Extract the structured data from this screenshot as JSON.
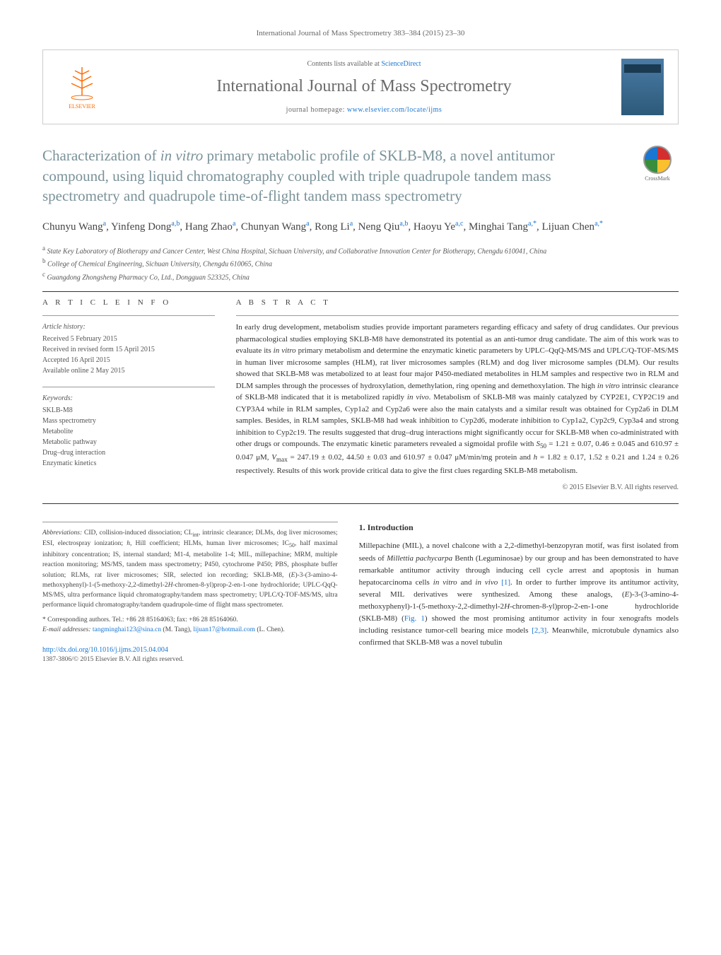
{
  "header": {
    "citation": "International Journal of Mass Spectrometry 383–384 (2015) 23–30",
    "contentsLine": "Contents lists available at ",
    "contentsLink": "ScienceDirect",
    "journalTitle": "International Journal of Mass Spectrometry",
    "homepagePrefix": "journal homepage: ",
    "homepageUrl": "www.elsevier.com/locate/ijms",
    "elsevierLabel": "ELSEVIER"
  },
  "article": {
    "titleHtml": "Characterization of <em>in vitro</em> primary metabolic profile of SKLB-M8, a novel antitumor compound, using liquid chromatography coupled with triple quadrupole tandem mass spectrometry and quadrupole time-of-flight tandem mass spectrometry",
    "crossmarkLabel": "CrossMark",
    "authorsHtml": "Chunyu Wang<sup>a</sup>, Yinfeng Dong<sup>a,b</sup>, Hang Zhao<sup>a</sup>, Chunyan Wang<sup>a</sup>, Rong Li<sup>a</sup>, Neng Qiu<sup>a,b</sup>, Haoyu Ye<sup>a,c</sup>, Minghai Tang<sup>a,*</sup>, Lijuan Chen<sup>a,*</sup>",
    "affiliations": [
      {
        "sup": "a",
        "text": "State Key Laboratory of Biotherapy and Cancer Center, West China Hospital, Sichuan University, and Collaborative Innovation Center for Biotherapy, Chengdu 610041, China"
      },
      {
        "sup": "b",
        "text": "College of Chemical Engineering, Sichuan University, Chengdu 610065, China"
      },
      {
        "sup": "c",
        "text": "Guangdong Zhongsheng Pharmacy Co, Ltd., Dongguan 523325, China"
      }
    ]
  },
  "info": {
    "articleInfoHeading": "a r t i c l e   i n f o",
    "historyLabel": "Article history:",
    "history": [
      "Received 5 February 2015",
      "Received in revised form 15 April 2015",
      "Accepted 16 April 2015",
      "Available online 2 May 2015"
    ],
    "keywordsLabel": "Keywords:",
    "keywords": [
      "SKLB-M8",
      "Mass spectrometry",
      "Metabolite",
      "Metabolic pathway",
      "Drug–drug interaction",
      "Enzymatic kinetics"
    ]
  },
  "abstract": {
    "heading": "a b s t r a c t",
    "textHtml": "In early drug development, metabolism studies provide important parameters regarding efficacy and safety of drug candidates. Our previous pharmacological studies employing SKLB-M8 have demonstrated its potential as an anti-tumor drug candidate. The aim of this work was to evaluate its <em>in vitro</em> primary metabolism and determine the enzymatic kinetic parameters by UPLC–QqQ-MS/MS and UPLC/Q-TOF-MS/MS in human liver microsome samples (HLM), rat liver microsomes samples (RLM) and dog liver microsome samples (DLM). Our results showed that SKLB-M8 was metabolized to at least four major P450-mediated metabolites in HLM samples and respective two in RLM and DLM samples through the processes of hydroxylation, demethylation, ring opening and demethoxylation. The high <em>in vitro</em> intrinsic clearance of SKLB-M8 indicated that it is metabolized rapidly <em>in vivo</em>. Metabolism of SKLB-M8 was mainly catalyzed by CYP2E1, CYP2C19 and CYP3A4 while in RLM samples, Cyp1a2 and Cyp2a6 were also the main catalysts and a similar result was obtained for Cyp2a6 in DLM samples. Besides, in RLM samples, SKLB-M8 had weak inhibition to Cyp2d6, moderate inhibition to Cyp1a2, Cyp2c9, Cyp3a4 and strong inhibition to Cyp2c19. The results suggested that drug–drug interactions might significantly occur for SKLB-M8 when co-administrated with other drugs or compounds. The enzymatic kinetic parameters revealed a sigmoidal profile with <em>S</em><sub>50</sub> = 1.21 ± 0.07, 0.46 ± 0.045 and 610.97 ± 0.047 μM, <em>V</em><sub>max</sub> = 247.19 ± 0.02, 44.50 ± 0.03 and 610.97 ± 0.047 μM/min/mg protein and <em>h</em> = 1.82 ± 0.17, 1.52 ± 0.21 and 1.24 ± 0.26 respectively. Results of this work provide critical data to give the first clues regarding SKLB-M8 metabolism.",
    "copyright": "© 2015 Elsevier B.V. All rights reserved."
  },
  "footnotes": {
    "abbrevLabel": "Abbreviations:",
    "abbrevHtml": "CID, collision-induced dissociation; CL<sub>int</sub>, intrinsic clearance; DLMs, dog liver microsomes; ESI, electrospray ionization; <em>h</em>, Hill coefficient; HLMs, human liver microsomes; IC<sub>50</sub>, half maximal inhibitory concentration; IS, internal standard; M1-4, metabolite 1-4; MIL, millepachine; MRM, multiple reaction monitoring; MS/MS, tandem mass spectrometry; P450, cytochrome P450; PBS, phosphate buffer solution; RLMs, rat liver microsomes; SIR, selected ion recording; SKLB-M8, (<em>E</em>)-3-(3-amino-4-methoxyphenyl)-1-(5-methoxy-2,2-dimethyl-2<em>H</em>-chromen-8-yl)prop-2-en-1-one hydrochloride; UPLC-QqQ-MS/MS, ultra performance liquid chromatography/tandem mass spectrometry; UPLC/Q-TOF-MS/MS, ultra performance liquid chromatography/tandem quadrupole-time of flight mass spectrometer.",
    "corrLabel": "* Corresponding authors. Tel.: +86 28 85164063; fax: +86 28 85164060.",
    "emailLabel": "E-mail addresses:",
    "email1": "tangminghai123@sina.cn",
    "email1name": " (M. Tang), ",
    "email2": "lijuan17@hotmail.com",
    "email2name": " (L. Chen).",
    "doi": "http://dx.doi.org/10.1016/j.ijms.2015.04.004",
    "issn": "1387-3806/© 2015 Elsevier B.V. All rights reserved."
  },
  "intro": {
    "heading": "1. Introduction",
    "textHtml": "Millepachine (MIL), a novel chalcone with a 2,2-dimethyl-benzopyran motif, was first isolated from seeds of <em>Millettia pachycarpa</em> Benth (Leguminosae) by our group and has been demonstrated to have remarkable antitumor activity through inducing cell cycle arrest and apoptosis in human hepatocarcinoma cells <em>in vitro</em> and <em>in vivo</em> <a>[1]</a>. In order to further improve its antitumor activity, several MIL derivatives were synthesized. Among these analogs, (<em>E</em>)-3-(3-amino-4-methoxyphenyl)-1-(5-methoxy-2,2-dimethyl-2<em>H</em>-chromen-8-yl)prop-2-en-1-one hydrochloride (SKLB-M8) (<a>Fig. 1</a>) showed the most promising antitumor activity in four xenografts models including resistance tumor-cell bearing mice models <a>[2,3]</a>. Meanwhile, microtubule dynamics also confirmed that SKLB-M8 was a novel tubulin"
  },
  "colors": {
    "link": "#1976d2",
    "titleGray": "#7a9299",
    "textGray": "#555555",
    "border": "#cccccc"
  }
}
